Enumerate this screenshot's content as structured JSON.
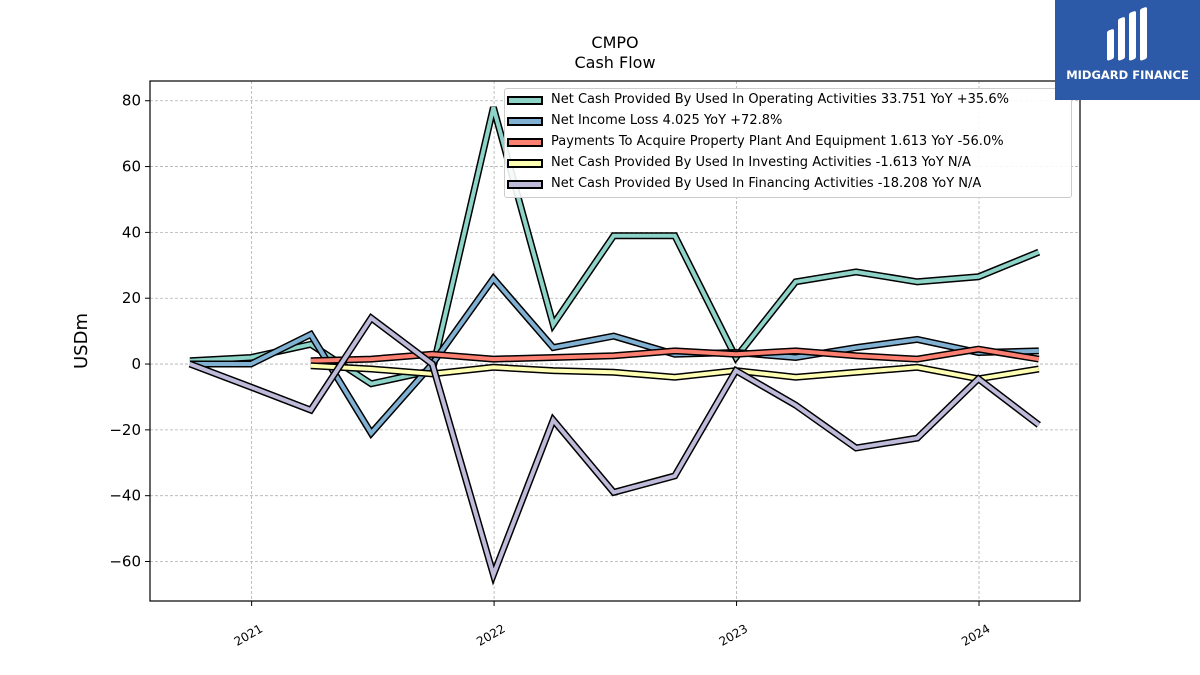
{
  "header": {
    "ticker": "CMPO",
    "subtitle": "Cash Flow"
  },
  "brand": {
    "name": "MIDGARD FINANCE",
    "color": "#2d5aa8"
  },
  "chart_data": {
    "type": "line",
    "title": "CMPO",
    "subtitle": "Cash Flow",
    "xlabel": "",
    "ylabel": "USDm",
    "xlim": [
      "2020-08-01",
      "2024-06-01"
    ],
    "ylim": [
      -72,
      86
    ],
    "yticks": [
      -60,
      -40,
      -20,
      0,
      20,
      40,
      60,
      80
    ],
    "ytick_labels": [
      "−60",
      "−40",
      "−20",
      "0",
      "20",
      "40",
      "60",
      "80"
    ],
    "xticks": [
      "2021-01-01",
      "2022-01-01",
      "2023-01-01",
      "2024-01-01"
    ],
    "xtick_labels": [
      "2021",
      "2022",
      "2023",
      "2024"
    ],
    "grid": true,
    "legend_position": "top-right",
    "series": [
      {
        "name": "Net Cash Provided By Used In Operating Activities",
        "legend_label": "Net Cash Provided By Used In Operating Activities  33.751 YoY +35.6%",
        "color": "#8dd3c7",
        "points": [
          [
            "2020-09-30",
            1
          ],
          [
            "2020-12-31",
            2
          ],
          [
            "2021-03-31",
            6
          ],
          [
            "2021-06-30",
            -6
          ],
          [
            "2021-09-30",
            -2
          ],
          [
            "2021-12-31",
            78
          ],
          [
            "2022-03-31",
            12
          ],
          [
            "2022-06-30",
            39
          ],
          [
            "2022-09-30",
            39
          ],
          [
            "2022-12-31",
            2
          ],
          [
            "2023-03-31",
            25
          ],
          [
            "2023-06-30",
            28
          ],
          [
            "2023-09-30",
            25
          ],
          [
            "2023-12-31",
            26.5
          ],
          [
            "2024-03-31",
            34
          ]
        ]
      },
      {
        "name": "Net Income Loss",
        "legend_label": "Net Income Loss  4.025 YoY +72.8%",
        "color": "#80b1d3",
        "points": [
          [
            "2020-09-30",
            0
          ],
          [
            "2020-12-31",
            0
          ],
          [
            "2021-03-31",
            9
          ],
          [
            "2021-06-30",
            -21
          ],
          [
            "2021-09-30",
            0
          ],
          [
            "2021-12-31",
            26
          ],
          [
            "2022-03-31",
            5
          ],
          [
            "2022-06-30",
            8.5
          ],
          [
            "2022-09-30",
            3
          ],
          [
            "2022-12-31",
            3.5
          ],
          [
            "2023-03-31",
            2
          ],
          [
            "2023-06-30",
            5
          ],
          [
            "2023-09-30",
            7.5
          ],
          [
            "2023-12-31",
            3.5
          ],
          [
            "2024-03-31",
            4
          ]
        ]
      },
      {
        "name": "Payments To Acquire Property Plant And Equipment",
        "legend_label": "Payments To Acquire Property Plant And Equipment  1.613 YoY -56.0%",
        "color": "#fb8072",
        "points": [
          [
            "2021-03-31",
            1
          ],
          [
            "2021-06-30",
            1.5
          ],
          [
            "2021-09-30",
            3
          ],
          [
            "2021-12-31",
            1.5
          ],
          [
            "2022-03-31",
            2
          ],
          [
            "2022-06-30",
            2.5
          ],
          [
            "2022-09-30",
            4
          ],
          [
            "2022-12-31",
            3
          ],
          [
            "2023-03-31",
            4
          ],
          [
            "2023-06-30",
            2.5
          ],
          [
            "2023-09-30",
            1.5
          ],
          [
            "2023-12-31",
            4.5
          ],
          [
            "2024-03-31",
            1.5
          ]
        ]
      },
      {
        "name": "Net Cash Provided By Used In Investing Activities",
        "legend_label": "Net Cash Provided By Used In Investing Activities  -1.613 YoY N/A",
        "color": "#ffffb3",
        "points": [
          [
            "2021-03-31",
            -0.5
          ],
          [
            "2021-06-30",
            -1.5
          ],
          [
            "2021-09-30",
            -3
          ],
          [
            "2021-12-31",
            -1
          ],
          [
            "2022-03-31",
            -2
          ],
          [
            "2022-06-30",
            -2.5
          ],
          [
            "2022-09-30",
            -4
          ],
          [
            "2022-12-31",
            -2
          ],
          [
            "2023-03-31",
            -4
          ],
          [
            "2023-06-30",
            -2.5
          ],
          [
            "2023-09-30",
            -1
          ],
          [
            "2023-12-31",
            -4.5
          ],
          [
            "2024-03-31",
            -1.5
          ]
        ]
      },
      {
        "name": "Net Cash Provided By Used In Financing Activities",
        "legend_label": "Net Cash Provided By Used In Financing Activities  -18.208 YoY N/A",
        "color": "#bebada",
        "points": [
          [
            "2020-09-30",
            0
          ],
          [
            "2020-12-31",
            -7
          ],
          [
            "2021-03-31",
            -14
          ],
          [
            "2021-06-30",
            14
          ],
          [
            "2021-09-30",
            0
          ],
          [
            "2021-12-31",
            -64
          ],
          [
            "2022-03-31",
            -17
          ],
          [
            "2022-06-30",
            -39
          ],
          [
            "2022-09-30",
            -34
          ],
          [
            "2022-12-31",
            -2
          ],
          [
            "2023-03-31",
            -12.5
          ],
          [
            "2023-06-30",
            -25.5
          ],
          [
            "2023-09-30",
            -22.5
          ],
          [
            "2023-12-31",
            -4.5
          ],
          [
            "2024-03-31",
            -18.5
          ]
        ]
      }
    ]
  }
}
